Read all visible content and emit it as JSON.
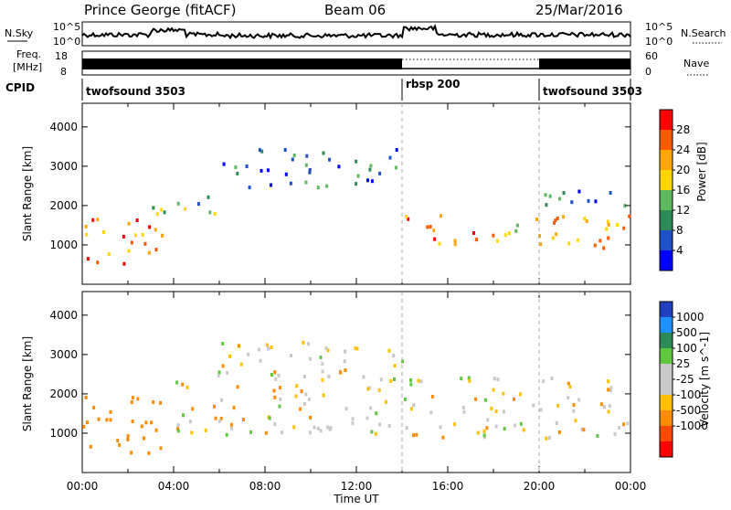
{
  "header": {
    "station": "Prince George (fitACF)",
    "beam": "Beam 06",
    "date": "25/Mar/2016"
  },
  "top_panels": {
    "nsky_label": "N.Sky",
    "nsky_ticks": [
      "10^5",
      "10^0"
    ],
    "nsearch_label": "N.Search",
    "freq_label_1": "Freq.",
    "freq_label_2": "[MHz]",
    "freq_ticks": [
      "18",
      "8"
    ],
    "nave_label": "Nave",
    "nave_ticks": [
      "60",
      "0"
    ],
    "cpid_label": "CPID",
    "cpid_segments": [
      {
        "label": "twofsound 3503",
        "start_h": 0,
        "end_h": 14
      },
      {
        "label": "rbsp 200",
        "start_h": 14,
        "end_h": 20
      },
      {
        "label": "twofsound 3503",
        "start_h": 20,
        "end_h": 24
      }
    ]
  },
  "colors": {
    "power_scale": [
      "#0000ff",
      "#1e50c8",
      "#2e8b57",
      "#5fba5f",
      "#ffd700",
      "#ffa500",
      "#ff5a00",
      "#ff0000"
    ],
    "velocity_scale": [
      "#ff0000",
      "#ff4a00",
      "#ff8c00",
      "#ffc000",
      "#c8c8c8",
      "#c8c8c8",
      "#60c840",
      "#2e8b57",
      "#1e90ff",
      "#2040c0"
    ],
    "velocity_gray": "#c8c8c8"
  },
  "chart_data": [
    {
      "type": "heatmap",
      "title": "",
      "xlabel": "Time UT",
      "ylabel": "Slant Range [km]",
      "xlim": [
        0,
        24
      ],
      "ylim": [
        0,
        4600
      ],
      "x_ticks": [
        "00:00",
        "04:00",
        "08:00",
        "12:00",
        "16:00",
        "20:00",
        "00:00"
      ],
      "y_ticks": [
        1000,
        2000,
        3000,
        4000
      ],
      "colorbar": {
        "label": "Power [dB]",
        "ticks": [
          4,
          8,
          12,
          16,
          20,
          24,
          28
        ],
        "range": [
          0,
          32
        ]
      },
      "mode_change_hours": [
        14,
        20
      ],
      "features": [
        {
          "t0": 0,
          "t1": 4,
          "r0": 500,
          "r1": 1700,
          "value": 24
        },
        {
          "t0": 3,
          "t1": 6,
          "r0": 1800,
          "r1": 2500,
          "value": 14
        },
        {
          "t0": 6,
          "t1": 14,
          "r0": 2500,
          "r1": 3500,
          "value": 8
        },
        {
          "t0": 14,
          "t1": 24,
          "r0": 900,
          "r1": 1800,
          "value": 22
        },
        {
          "t0": 20,
          "t1": 24,
          "r0": 1900,
          "r1": 2500,
          "value": 8
        }
      ]
    },
    {
      "type": "heatmap",
      "title": "",
      "xlabel": "Time UT",
      "ylabel": "Slant Range [km]",
      "xlim": [
        0,
        24
      ],
      "ylim": [
        0,
        4600
      ],
      "x_ticks": [
        "00:00",
        "04:00",
        "08:00",
        "12:00",
        "16:00",
        "20:00",
        "00:00"
      ],
      "y_ticks": [
        1000,
        2000,
        3000,
        4000
      ],
      "colorbar": {
        "label": "Velocity [m s^-1]",
        "ticks": [
          1000,
          500,
          100,
          25,
          -25,
          -100,
          -500,
          -1000
        ]
      },
      "mode_change_hours": [
        14,
        20
      ],
      "features": [
        {
          "t0": 0,
          "t1": 4,
          "r0": 500,
          "r1": 2000,
          "value": -250
        },
        {
          "t0": 4,
          "t1": 14,
          "r0": 1000,
          "r1": 3400,
          "value": 0
        },
        {
          "t0": 14,
          "t1": 24,
          "r0": 900,
          "r1": 2500,
          "value": 0
        }
      ]
    }
  ]
}
